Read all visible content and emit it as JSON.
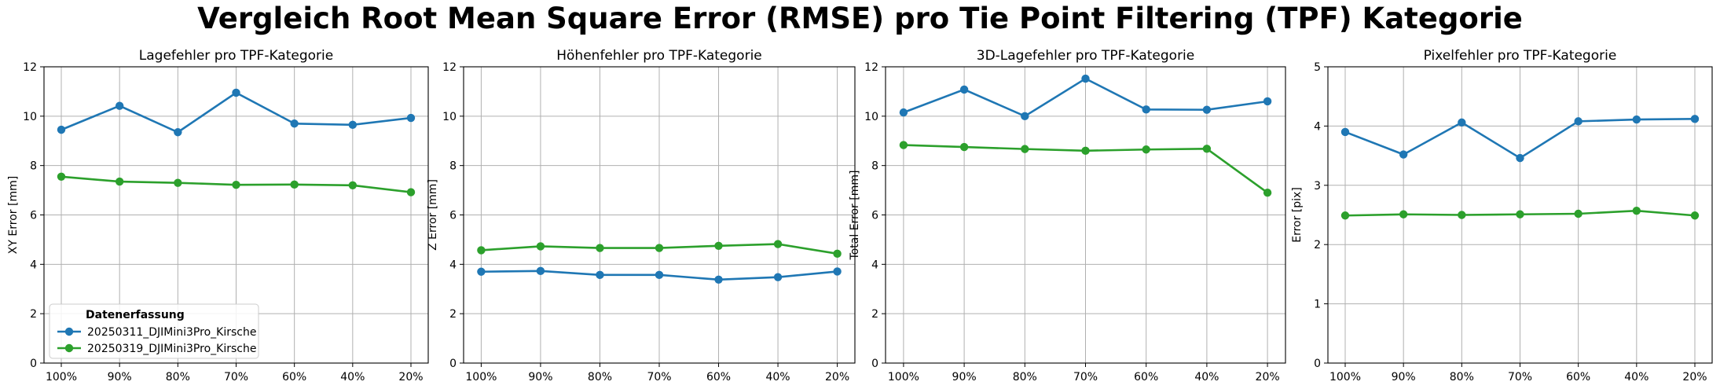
{
  "figure_title": "Vergleich Root Mean Square Error (RMSE) pro Tie Point Filtering (TPF) Kategorie",
  "legend": {
    "title": "Datenerfassung",
    "entries": [
      "20250311_DJIMini3Pro_Kirsche",
      "20250319_DJIMini3Pro_Kirsche"
    ]
  },
  "colors": {
    "series_1": "#1f77b4",
    "series_2": "#2ca02c",
    "grid": "#b0b0b0"
  },
  "chart_data": [
    {
      "type": "line",
      "title": "Lagefehler pro TPF-Kategorie",
      "xlabel": "",
      "ylabel": "XY Error [mm]",
      "categories": [
        "100%",
        "90%",
        "80%",
        "70%",
        "60%",
        "40%",
        "20%"
      ],
      "ylim": [
        0,
        12
      ],
      "yticks": [
        0,
        2,
        4,
        6,
        8,
        10,
        12
      ],
      "grid": true,
      "legend_placement": "lower-left",
      "series": [
        {
          "name": "20250311_DJIMini3Pro_Kirsche",
          "values": [
            9.45,
            10.42,
            9.35,
            10.95,
            9.7,
            9.65,
            9.93
          ]
        },
        {
          "name": "20250319_DJIMini3Pro_Kirsche",
          "values": [
            7.55,
            7.35,
            7.3,
            7.22,
            7.23,
            7.2,
            6.92
          ]
        }
      ]
    },
    {
      "type": "line",
      "title": "Höhenfehler pro TPF-Kategorie",
      "xlabel": "",
      "ylabel": "Z Error [mm]",
      "categories": [
        "100%",
        "90%",
        "80%",
        "70%",
        "60%",
        "40%",
        "20%"
      ],
      "ylim": [
        0,
        12
      ],
      "yticks": [
        0,
        2,
        4,
        6,
        8,
        10,
        12
      ],
      "grid": true,
      "series": [
        {
          "name": "20250311_DJIMini3Pro_Kirsche",
          "values": [
            3.7,
            3.73,
            3.57,
            3.57,
            3.38,
            3.48,
            3.71
          ]
        },
        {
          "name": "20250319_DJIMini3Pro_Kirsche",
          "values": [
            4.57,
            4.73,
            4.66,
            4.66,
            4.75,
            4.82,
            4.43
          ]
        }
      ]
    },
    {
      "type": "line",
      "title": "3D-Lagefehler pro TPF-Kategorie",
      "xlabel": "",
      "ylabel": "Total Error [mm]",
      "categories": [
        "100%",
        "90%",
        "80%",
        "70%",
        "60%",
        "40%",
        "20%"
      ],
      "ylim": [
        0,
        12
      ],
      "yticks": [
        0,
        2,
        4,
        6,
        8,
        10,
        12
      ],
      "grid": true,
      "series": [
        {
          "name": "20250311_DJIMini3Pro_Kirsche",
          "values": [
            10.15,
            11.08,
            10.0,
            11.52,
            10.27,
            10.26,
            10.6
          ]
        },
        {
          "name": "20250319_DJIMini3Pro_Kirsche",
          "values": [
            8.83,
            8.75,
            8.67,
            8.6,
            8.65,
            8.68,
            6.9
          ]
        }
      ]
    },
    {
      "type": "line",
      "title": "Pixelfehler pro TPF-Kategorie",
      "xlabel": "",
      "ylabel": "Error [pix]",
      "categories": [
        "100%",
        "90%",
        "80%",
        "70%",
        "60%",
        "40%",
        "20%"
      ],
      "ylim": [
        0,
        5
      ],
      "yticks": [
        0,
        1,
        2,
        3,
        4,
        5
      ],
      "grid": true,
      "series": [
        {
          "name": "20250311_DJIMini3Pro_Kirsche",
          "values": [
            3.9,
            3.52,
            4.06,
            3.46,
            4.08,
            4.11,
            4.12
          ]
        },
        {
          "name": "20250319_DJIMini3Pro_Kirsche",
          "values": [
            2.49,
            2.51,
            2.5,
            2.51,
            2.52,
            2.57,
            2.49
          ]
        }
      ]
    }
  ]
}
